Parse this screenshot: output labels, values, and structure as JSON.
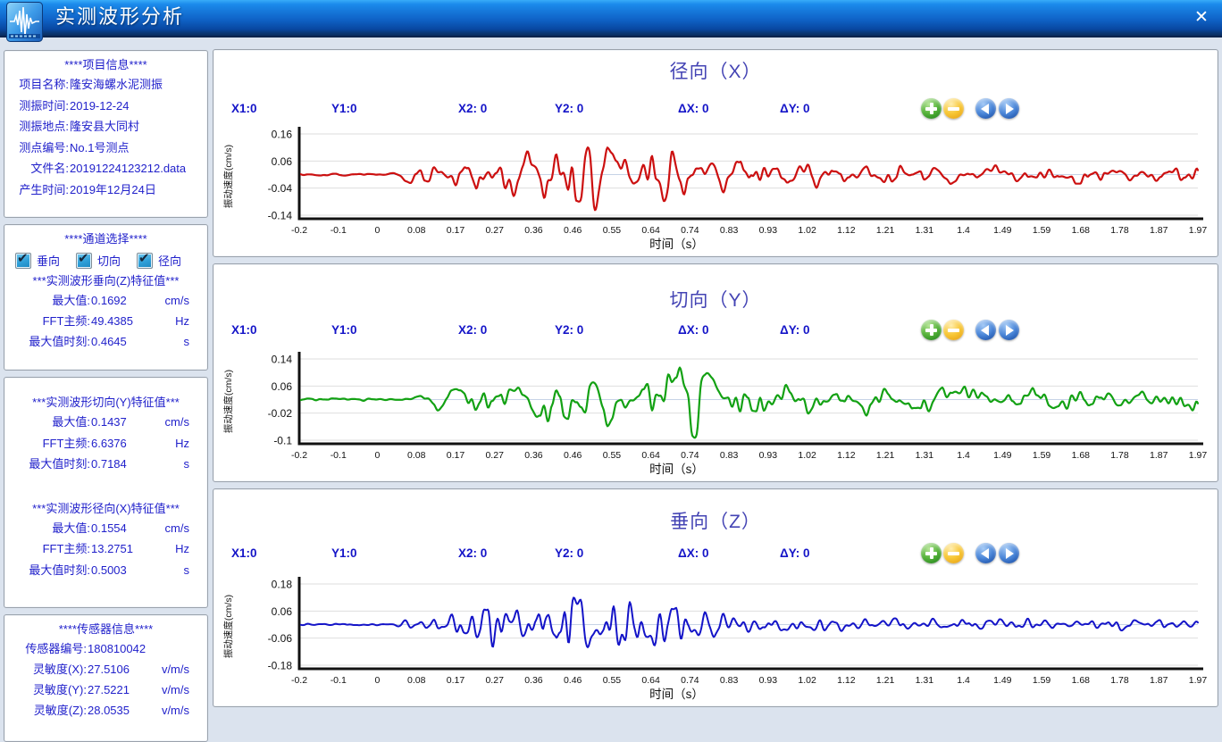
{
  "window": {
    "title": "实测波形分析",
    "close_glyph": "✕"
  },
  "accent_colors": {
    "titlebar_top": "#38abf8",
    "titlebar_bottom": "#0a2c60",
    "sidebar_text": "#2121cb",
    "chart_title": "#4444b4",
    "header_text": "#1515c8",
    "checkbox_fill": "#2e9fd8"
  },
  "controls": {
    "zoom_in_icon": "plus",
    "zoom_out_icon": "minus",
    "pan_left_icon": "arrow-left",
    "pan_right_icon": "arrow-right"
  },
  "sidebar": {
    "project": {
      "title": "****项目信息****",
      "rows": [
        {
          "label": "项目名称:",
          "value": "隆安海螺水泥测振"
        },
        {
          "label": "测振时间:",
          "value": "2019-12-24"
        },
        {
          "label": "测振地点:",
          "value": "隆安县大同村"
        },
        {
          "label": "测点编号:",
          "value": "No.1号测点"
        },
        {
          "label": "文件名:",
          "value": "20191224123212.data"
        },
        {
          "label": "产生时间:",
          "value": "2019年12月24日"
        }
      ]
    },
    "channels": {
      "title": "****通道选择****",
      "options": [
        {
          "label": "垂向",
          "checked": true
        },
        {
          "label": "切向",
          "checked": true
        },
        {
          "label": "径向",
          "checked": true
        }
      ]
    },
    "features": [
      {
        "title": "***实测波形垂向(Z)特征值***",
        "rows": [
          {
            "label": "最大值:",
            "value": "0.1692",
            "unit": "cm/s"
          },
          {
            "label": "FFT主频:",
            "value": "49.4385",
            "unit": "Hz"
          },
          {
            "label": "最大值时刻:",
            "value": "0.4645",
            "unit": "s"
          }
        ]
      },
      {
        "title": "***实测波形切向(Y)特征值***",
        "rows": [
          {
            "label": "最大值:",
            "value": "0.1437",
            "unit": "cm/s"
          },
          {
            "label": "FFT主频:",
            "value": "6.6376",
            "unit": "Hz"
          },
          {
            "label": "最大值时刻:",
            "value": "0.7184",
            "unit": "s"
          }
        ]
      },
      {
        "title": "***实测波形径向(X)特征值***",
        "rows": [
          {
            "label": "最大值:",
            "value": "0.1554",
            "unit": "cm/s"
          },
          {
            "label": "FFT主频:",
            "value": "13.2751",
            "unit": "Hz"
          },
          {
            "label": "最大值时刻:",
            "value": "0.5003",
            "unit": "s"
          }
        ]
      }
    ],
    "sensor": {
      "title": "****传感器信息****",
      "rows": [
        {
          "label": "传感器编号:",
          "value": "180810042",
          "unit": ""
        },
        {
          "label": "灵敏度(X):",
          "value": "27.5106",
          "unit": "v/m/s"
        },
        {
          "label": "灵敏度(Y):",
          "value": "27.5221",
          "unit": "v/m/s"
        },
        {
          "label": "灵敏度(Z):",
          "value": "28.0535",
          "unit": "v/m/s"
        }
      ]
    }
  },
  "chart_header": {
    "labels": [
      "X1:0",
      "Y1:0",
      "X2: 0",
      "Y2: 0",
      "ΔX: 0",
      "ΔY: 0"
    ]
  },
  "chart_data": [
    {
      "type": "line",
      "title": "径向（X）",
      "color": "#cc1010",
      "stroke": 2.2,
      "xlabel": "时间（s）",
      "ylabel": "振动速度(cm/s)",
      "x_ticks": [
        "-0.2",
        "-0.1",
        "0",
        "0.08",
        "0.17",
        "0.27",
        "0.36",
        "0.46",
        "0.55",
        "0.64",
        "0.74",
        "0.83",
        "0.93",
        "1.02",
        "1.12",
        "1.21",
        "1.31",
        "1.4",
        "1.49",
        "1.59",
        "1.68",
        "1.78",
        "1.87",
        "1.97"
      ],
      "y_ticks": [
        0.16,
        0.06,
        -0.04,
        -0.14
      ],
      "ylim": [
        -0.17,
        0.19
      ],
      "baseline": 0.01,
      "max_value_cms": 0.1554,
      "max_time_s": 0.5003,
      "fft_main_freq_hz": 13.2751,
      "grid": true,
      "legend": "none",
      "seed": 11,
      "freqs": [
        13.3,
        7.2,
        24
      ],
      "weights": [
        0.55,
        0.27,
        0.18
      ],
      "noise": 0.55,
      "envelope": [
        [
          -0.2,
          0.005
        ],
        [
          0.03,
          0.005
        ],
        [
          0.06,
          0.03
        ],
        [
          0.1,
          0.05
        ],
        [
          0.16,
          0.04
        ],
        [
          0.22,
          0.055
        ],
        [
          0.28,
          0.08
        ],
        [
          0.34,
          0.075
        ],
        [
          0.4,
          0.09
        ],
        [
          0.46,
          0.155
        ],
        [
          0.5,
          0.12
        ],
        [
          0.56,
          0.09
        ],
        [
          0.6,
          0.08
        ],
        [
          0.64,
          0.1
        ],
        [
          0.7,
          0.08
        ],
        [
          0.74,
          0.1
        ],
        [
          0.78,
          0.07
        ],
        [
          0.83,
          0.06
        ],
        [
          0.9,
          0.055
        ],
        [
          0.97,
          0.045
        ],
        [
          1.02,
          0.055
        ],
        [
          1.1,
          0.03
        ],
        [
          1.21,
          0.035
        ],
        [
          1.31,
          0.03
        ],
        [
          1.4,
          0.035
        ],
        [
          1.49,
          0.03
        ],
        [
          1.59,
          0.025
        ],
        [
          1.68,
          0.035
        ],
        [
          1.78,
          0.03
        ],
        [
          1.87,
          0.025
        ],
        [
          1.97,
          0.035
        ],
        [
          2.05,
          0.03
        ]
      ]
    },
    {
      "type": "line",
      "title": "切向（Y）",
      "color": "#13a113",
      "stroke": 2.2,
      "xlabel": "时间（s）",
      "ylabel": "振动速度(cm/s)",
      "x_ticks": [
        "-0.2",
        "-0.1",
        "0",
        "0.08",
        "0.17",
        "0.27",
        "0.36",
        "0.46",
        "0.55",
        "0.64",
        "0.74",
        "0.83",
        "0.93",
        "1.02",
        "1.12",
        "1.21",
        "1.31",
        "1.4",
        "1.49",
        "1.59",
        "1.68",
        "1.78",
        "1.87",
        "1.97"
      ],
      "y_ticks": [
        0.14,
        0.06,
        -0.02,
        -0.1
      ],
      "ylim": [
        -0.13,
        0.17
      ],
      "baseline": 0.02,
      "max_value_cms": 0.1437,
      "max_time_s": 0.7184,
      "fft_main_freq_hz": 6.6376,
      "grid": true,
      "legend": "none",
      "seed": 23,
      "freqs": [
        6.6,
        11.5,
        19
      ],
      "weights": [
        0.5,
        0.3,
        0.2
      ],
      "noise": 0.5,
      "envelope": [
        [
          -0.2,
          0.004
        ],
        [
          0.05,
          0.004
        ],
        [
          0.08,
          0.025
        ],
        [
          0.12,
          0.03
        ],
        [
          0.17,
          0.035
        ],
        [
          0.22,
          0.045
        ],
        [
          0.27,
          0.055
        ],
        [
          0.32,
          0.05
        ],
        [
          0.36,
          0.06
        ],
        [
          0.4,
          0.08
        ],
        [
          0.44,
          0.09
        ],
        [
          0.48,
          0.07
        ],
        [
          0.52,
          0.06
        ],
        [
          0.56,
          0.065
        ],
        [
          0.6,
          0.055
        ],
        [
          0.64,
          0.06
        ],
        [
          0.68,
          0.07
        ],
        [
          0.72,
          0.135
        ],
        [
          0.76,
          0.11
        ],
        [
          0.8,
          0.08
        ],
        [
          0.85,
          0.06
        ],
        [
          0.9,
          0.05
        ],
        [
          0.95,
          0.055
        ],
        [
          1,
          0.05
        ],
        [
          1.05,
          0.04
        ],
        [
          1.1,
          0.045
        ],
        [
          1.15,
          0.04
        ],
        [
          1.21,
          0.045
        ],
        [
          1.28,
          0.05
        ],
        [
          1.35,
          0.04
        ],
        [
          1.45,
          0.035
        ],
        [
          1.55,
          0.03
        ],
        [
          1.65,
          0.035
        ],
        [
          1.75,
          0.03
        ],
        [
          1.85,
          0.028
        ],
        [
          1.97,
          0.03
        ],
        [
          2.05,
          0.028
        ]
      ]
    },
    {
      "type": "line",
      "title": "垂向（Z）",
      "color": "#1414c8",
      "stroke": 2.0,
      "xlabel": "时间（s）",
      "ylabel": "振动速度(cm/s)",
      "x_ticks": [
        "-0.2",
        "-0.1",
        "0",
        "0.08",
        "0.17",
        "0.27",
        "0.36",
        "0.46",
        "0.55",
        "0.64",
        "0.74",
        "0.83",
        "0.93",
        "1.02",
        "1.12",
        "1.21",
        "1.31",
        "1.4",
        "1.49",
        "1.59",
        "1.68",
        "1.78",
        "1.87",
        "1.97"
      ],
      "y_ticks": [
        0.18,
        0.06,
        -0.06,
        -0.18
      ],
      "ylim": [
        -0.21,
        0.21
      ],
      "baseline": 0.0,
      "max_value_cms": 0.1692,
      "max_time_s": 0.4645,
      "fft_main_freq_hz": 49.4385,
      "grid": true,
      "legend": "none",
      "seed": 37,
      "freqs": [
        26,
        44,
        13
      ],
      "weights": [
        0.45,
        0.3,
        0.25
      ],
      "noise": 0.5,
      "envelope": [
        [
          -0.2,
          0.004
        ],
        [
          0.03,
          0.004
        ],
        [
          0.05,
          0.02
        ],
        [
          0.08,
          0.03
        ],
        [
          0.11,
          0.025
        ],
        [
          0.15,
          0.05
        ],
        [
          0.19,
          0.06
        ],
        [
          0.23,
          0.075
        ],
        [
          0.27,
          0.09
        ],
        [
          0.31,
          0.1
        ],
        [
          0.35,
          0.12
        ],
        [
          0.39,
          0.11
        ],
        [
          0.43,
          0.13
        ],
        [
          0.46,
          0.17
        ],
        [
          0.5,
          0.13
        ],
        [
          0.54,
          0.15
        ],
        [
          0.58,
          0.12
        ],
        [
          0.62,
          0.13
        ],
        [
          0.66,
          0.11
        ],
        [
          0.7,
          0.1
        ],
        [
          0.74,
          0.09
        ],
        [
          0.78,
          0.085
        ],
        [
          0.83,
          0.06
        ],
        [
          0.88,
          0.045
        ],
        [
          0.93,
          0.04
        ],
        [
          1,
          0.035
        ],
        [
          1.08,
          0.03
        ],
        [
          1.15,
          0.025
        ],
        [
          1.25,
          0.03
        ],
        [
          1.35,
          0.025
        ],
        [
          1.45,
          0.022
        ],
        [
          1.55,
          0.025
        ],
        [
          1.65,
          0.02
        ],
        [
          1.75,
          0.022
        ],
        [
          1.85,
          0.02
        ],
        [
          1.97,
          0.022
        ],
        [
          2.05,
          0.02
        ]
      ]
    }
  ]
}
